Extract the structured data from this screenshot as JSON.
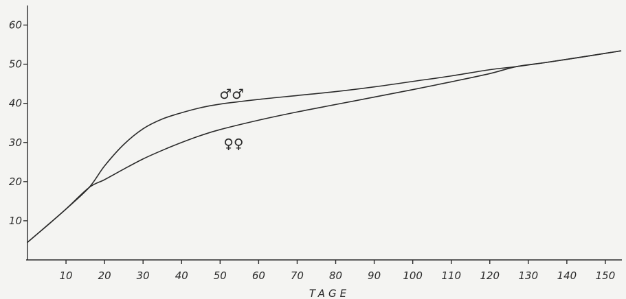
{
  "chart_data": {
    "type": "line",
    "title": "",
    "xlabel": "TAGE",
    "ylabel": "",
    "xlim": [
      0,
      155
    ],
    "ylim": [
      0,
      65
    ],
    "x_ticks": [
      "10",
      "20",
      "30",
      "40",
      "50",
      "60",
      "70",
      "80",
      "90",
      "100",
      "110",
      "120",
      "130",
      "140",
      "150"
    ],
    "y_ticks": [
      "10",
      "20",
      "30",
      "40",
      "50",
      "60"
    ],
    "grid": false,
    "legend": "none",
    "series": [
      {
        "name": "♂♂",
        "x": [
          0,
          5,
          10,
          16,
          20,
          25,
          30,
          35,
          40,
          45,
          50,
          60,
          70,
          80,
          90,
          100,
          110,
          120,
          127,
          135,
          145,
          154
        ],
        "values": [
          4.5,
          8.7,
          13.0,
          18.5,
          24.0,
          29.5,
          33.5,
          36.0,
          37.6,
          38.9,
          39.8,
          41.0,
          42.0,
          43.0,
          44.2,
          45.6,
          47.0,
          48.6,
          49.4,
          50.5,
          52.0,
          53.4
        ]
      },
      {
        "name": "♀♀",
        "x": [
          0,
          5,
          10,
          16,
          20,
          25,
          30,
          35,
          40,
          45,
          50,
          60,
          70,
          80,
          90,
          100,
          110,
          120,
          127,
          135,
          145,
          154
        ],
        "values": [
          4.5,
          8.7,
          13.0,
          18.5,
          20.5,
          23.2,
          25.8,
          28.0,
          30.0,
          31.8,
          33.3,
          35.7,
          37.8,
          39.7,
          41.6,
          43.5,
          45.5,
          47.6,
          49.4,
          50.5,
          52.0,
          53.4
        ]
      }
    ],
    "series_labels": [
      {
        "text": "♂♂",
        "x": 53,
        "y": 41.2
      },
      {
        "text": "♀♀",
        "x": 53.5,
        "y": 28.5
      }
    ]
  }
}
